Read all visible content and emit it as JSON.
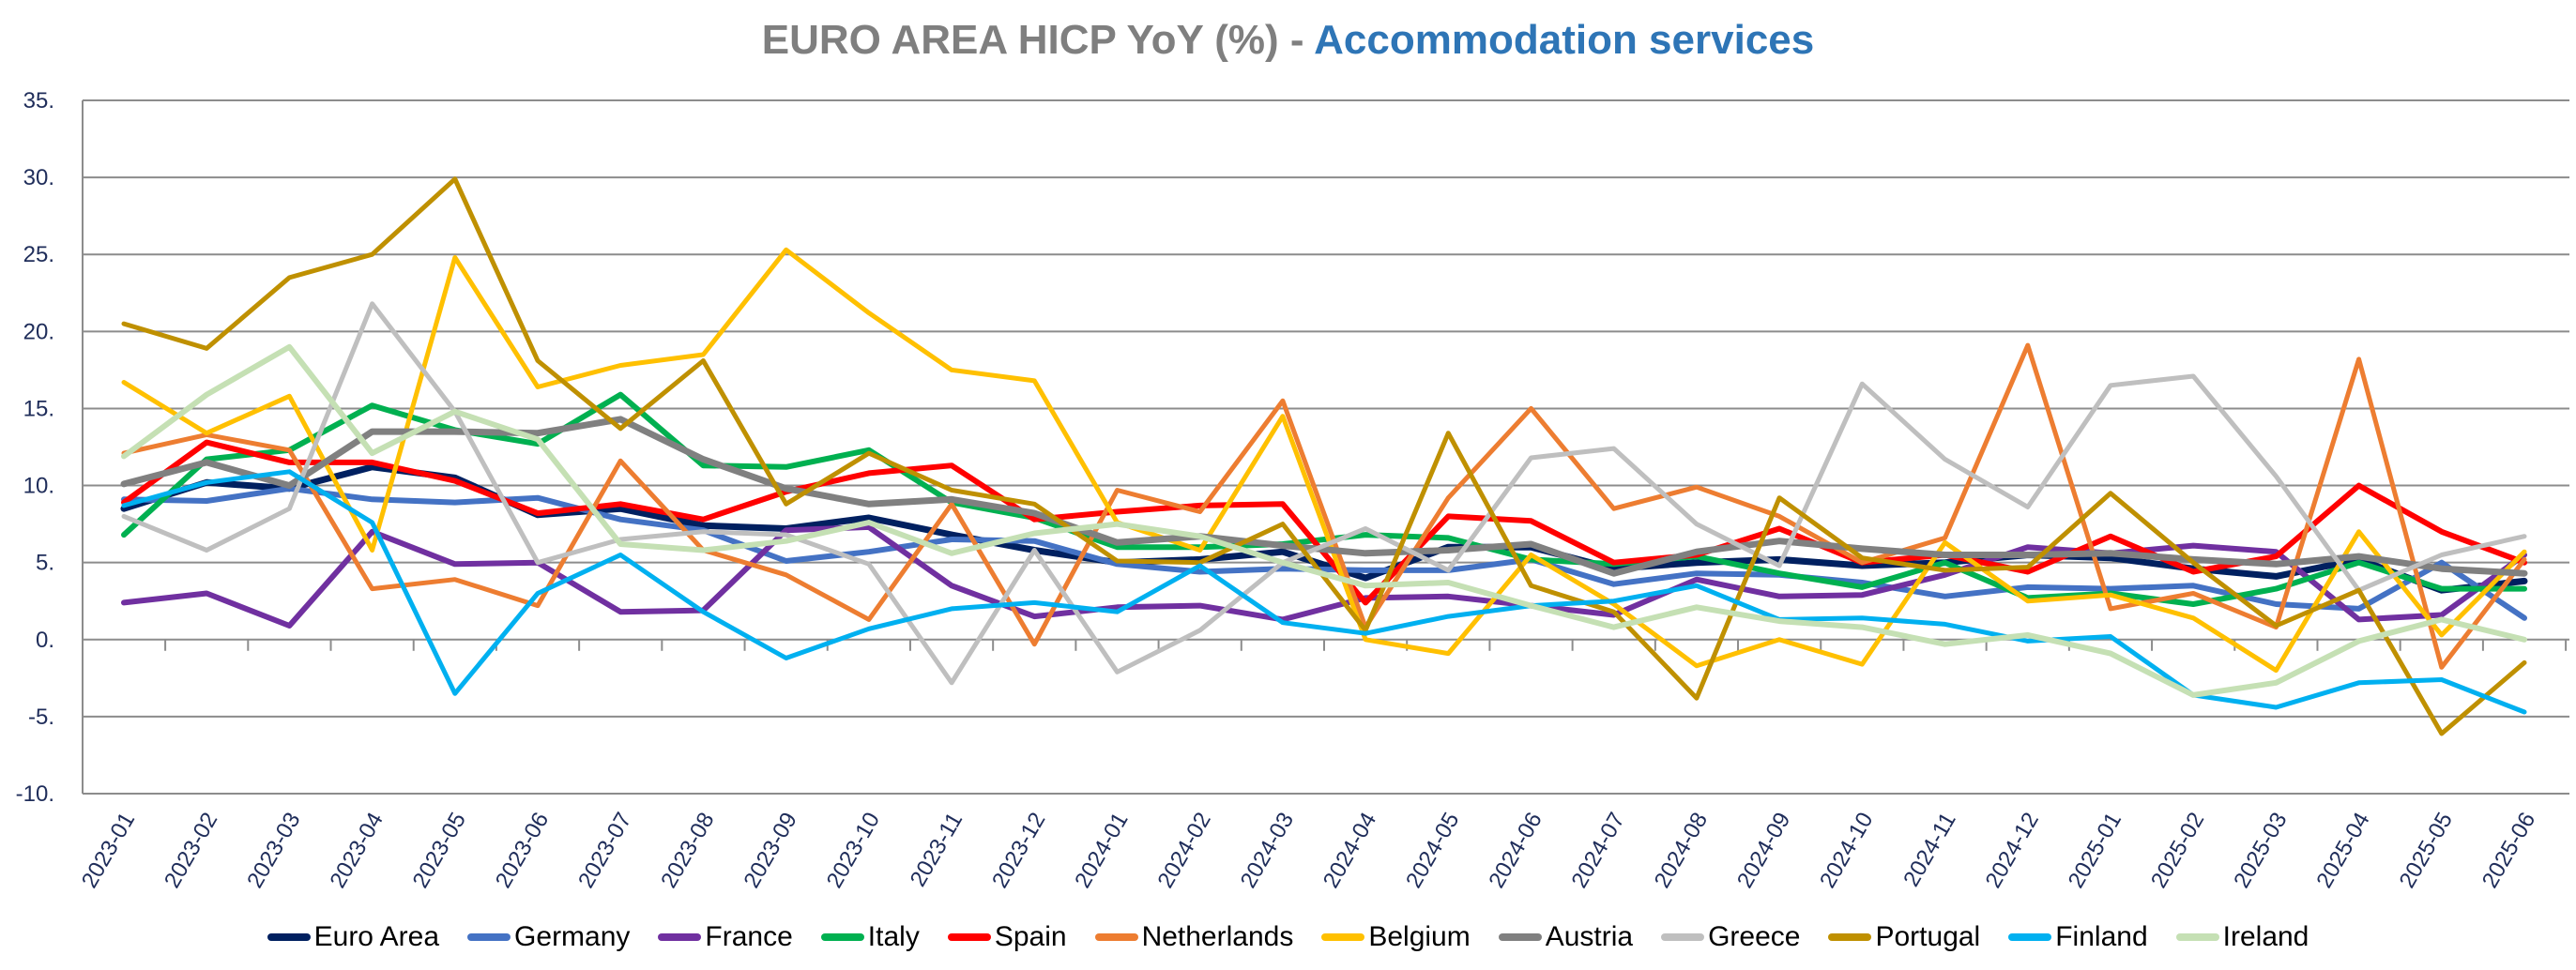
{
  "title": {
    "part1": "EURO AREA HICP YoY (%)",
    "separator": " - ",
    "part2": "Accommodation services"
  },
  "chart_data": {
    "type": "line",
    "title": "EURO AREA HICP YoY (%) - Accommodation services",
    "xlabel": "",
    "ylabel": "",
    "ylim": [
      -10,
      35
    ],
    "yticks": [
      35,
      30,
      25,
      20,
      15,
      10,
      5,
      0,
      -5,
      -10
    ],
    "ytick_labels": [
      "35.",
      "30.",
      "25.",
      "20.",
      "15.",
      "10.",
      "5.",
      "0.",
      "-5.",
      "-10."
    ],
    "grid": true,
    "legend_position": "bottom",
    "x": [
      "2023-01",
      "2023-02",
      "2023-03",
      "2023-04",
      "2023-05",
      "2023-06",
      "2023-07",
      "2023-08",
      "2023-09",
      "2023-10",
      "2023-11",
      "2023-12",
      "2024-01",
      "2024-02",
      "2024-03",
      "2024-04",
      "2024-05",
      "2024-06",
      "2024-07",
      "2024-08",
      "2024-09",
      "2024-10",
      "2024-11",
      "2024-12",
      "2025-01",
      "2025-02",
      "2025-03",
      "2025-04",
      "2025-05",
      "2025-06"
    ],
    "series": [
      {
        "name": "Euro Area",
        "color": "#002060",
        "values": [
          8.5,
          10.2,
          9.8,
          11.2,
          10.5,
          8.1,
          8.5,
          7.4,
          7.2,
          7.9,
          6.8,
          5.8,
          5.0,
          5.2,
          5.7,
          4.0,
          6.0,
          6.0,
          4.6,
          5.0,
          5.2,
          4.8,
          5.0,
          5.5,
          5.3,
          4.6,
          4.1,
          5.2,
          3.2,
          3.8
        ]
      },
      {
        "name": "Germany",
        "color": "#4472c4",
        "values": [
          9.1,
          9.0,
          9.8,
          9.1,
          8.9,
          9.2,
          7.8,
          7.1,
          5.1,
          5.7,
          6.5,
          6.4,
          4.9,
          4.4,
          4.6,
          4.5,
          4.5,
          5.2,
          3.6,
          4.3,
          4.2,
          3.7,
          2.8,
          3.4,
          3.3,
          3.5,
          2.3,
          2.0,
          5.0,
          1.4
        ]
      },
      {
        "name": "France",
        "color": "#7030a0",
        "values": [
          2.4,
          3.0,
          0.9,
          7.0,
          4.9,
          5.0,
          1.8,
          1.9,
          7.1,
          7.3,
          3.5,
          1.5,
          2.1,
          2.2,
          1.3,
          2.7,
          2.8,
          2.2,
          1.6,
          3.9,
          2.8,
          2.9,
          4.2,
          6.0,
          5.6,
          6.1,
          5.7,
          1.3,
          1.6,
          5.5
        ]
      },
      {
        "name": "Italy",
        "color": "#00b050",
        "values": [
          6.8,
          11.7,
          12.3,
          15.2,
          13.6,
          12.7,
          15.9,
          11.3,
          11.2,
          12.3,
          8.9,
          7.9,
          6.0,
          6.0,
          6.2,
          6.8,
          6.6,
          5.2,
          4.9,
          5.4,
          4.3,
          3.4,
          5.0,
          2.7,
          3.0,
          2.3,
          3.3,
          5.0,
          3.3,
          3.3
        ]
      },
      {
        "name": "Spain",
        "color": "#ff0000",
        "values": [
          8.9,
          12.8,
          11.5,
          11.5,
          10.3,
          8.2,
          8.8,
          7.8,
          9.6,
          10.8,
          11.3,
          7.8,
          8.3,
          8.7,
          8.8,
          2.4,
          8.0,
          7.7,
          5.0,
          5.5,
          7.2,
          5.0,
          5.5,
          4.4,
          6.7,
          4.4,
          5.4,
          10.0,
          7.0,
          5.0
        ]
      },
      {
        "name": "Netherlands",
        "color": "#ed7d31",
        "values": [
          12.1,
          13.3,
          12.3,
          3.3,
          3.9,
          2.2,
          11.6,
          5.8,
          4.2,
          1.3,
          8.8,
          -0.3,
          9.7,
          8.3,
          15.5,
          0.8,
          9.2,
          15.0,
          8.5,
          9.9,
          8.0,
          5.0,
          6.6,
          19.1,
          2.0,
          3.0,
          0.8,
          18.2,
          -1.8,
          5.2
        ]
      },
      {
        "name": "Belgium",
        "color": "#ffc000",
        "values": [
          16.7,
          13.4,
          15.8,
          5.8,
          24.8,
          16.4,
          17.8,
          18.5,
          25.3,
          21.2,
          17.5,
          16.8,
          7.6,
          5.8,
          14.5,
          0.0,
          -0.9,
          5.5,
          2.3,
          -1.7,
          0.0,
          -1.6,
          6.3,
          2.5,
          2.9,
          1.4,
          -2.0,
          7.0,
          0.3,
          5.7
        ]
      },
      {
        "name": "Austria",
        "color": "#808080",
        "values": [
          10.1,
          11.5,
          10.0,
          13.5,
          13.5,
          13.4,
          14.3,
          11.7,
          9.8,
          8.8,
          9.1,
          8.2,
          6.3,
          6.7,
          6.1,
          5.6,
          5.8,
          6.2,
          4.3,
          5.7,
          6.4,
          5.9,
          5.5,
          5.5,
          5.6,
          5.2,
          4.9,
          5.4,
          4.6,
          4.3
        ]
      },
      {
        "name": "Greece",
        "color": "#bfbfbf",
        "values": [
          8.0,
          5.8,
          8.5,
          21.8,
          14.8,
          5.0,
          6.5,
          7.0,
          6.8,
          4.9,
          -2.8,
          5.8,
          -2.1,
          0.6,
          5.0,
          7.2,
          4.5,
          11.8,
          12.4,
          7.5,
          4.8,
          16.6,
          11.7,
          8.6,
          16.5,
          17.1,
          10.6,
          3.2,
          5.5,
          6.7
        ]
      },
      {
        "name": "Portugal",
        "color": "#bf9000",
        "values": [
          20.5,
          18.9,
          23.5,
          25.0,
          29.9,
          18.1,
          13.7,
          18.1,
          8.8,
          12.1,
          9.7,
          8.8,
          5.1,
          5.0,
          7.5,
          0.6,
          13.4,
          3.5,
          1.8,
          -3.8,
          9.2,
          5.3,
          4.5,
          4.7,
          9.5,
          5.0,
          0.9,
          3.2,
          -6.1,
          -1.5
        ]
      },
      {
        "name": "Finland",
        "color": "#00b0f0",
        "values": [
          8.7,
          10.2,
          10.9,
          7.6,
          -3.5,
          3.0,
          5.5,
          1.8,
          -1.2,
          0.7,
          2.0,
          2.4,
          1.8,
          4.8,
          1.1,
          0.4,
          1.5,
          2.2,
          2.5,
          3.5,
          1.3,
          1.4,
          1.0,
          -0.1,
          0.2,
          -3.6,
          -4.4,
          -2.8,
          -2.6,
          -4.7
        ]
      },
      {
        "name": "Ireland",
        "color": "#c5e0b4",
        "values": [
          11.9,
          15.9,
          19.0,
          12.1,
          14.8,
          13.0,
          6.2,
          5.8,
          6.4,
          7.6,
          5.6,
          6.9,
          7.5,
          6.7,
          5.0,
          3.5,
          3.7,
          2.2,
          0.8,
          2.1,
          1.2,
          0.8,
          -0.3,
          0.3,
          -0.9,
          -3.6,
          -2.8,
          -0.1,
          1.3,
          0.0
        ]
      }
    ]
  }
}
